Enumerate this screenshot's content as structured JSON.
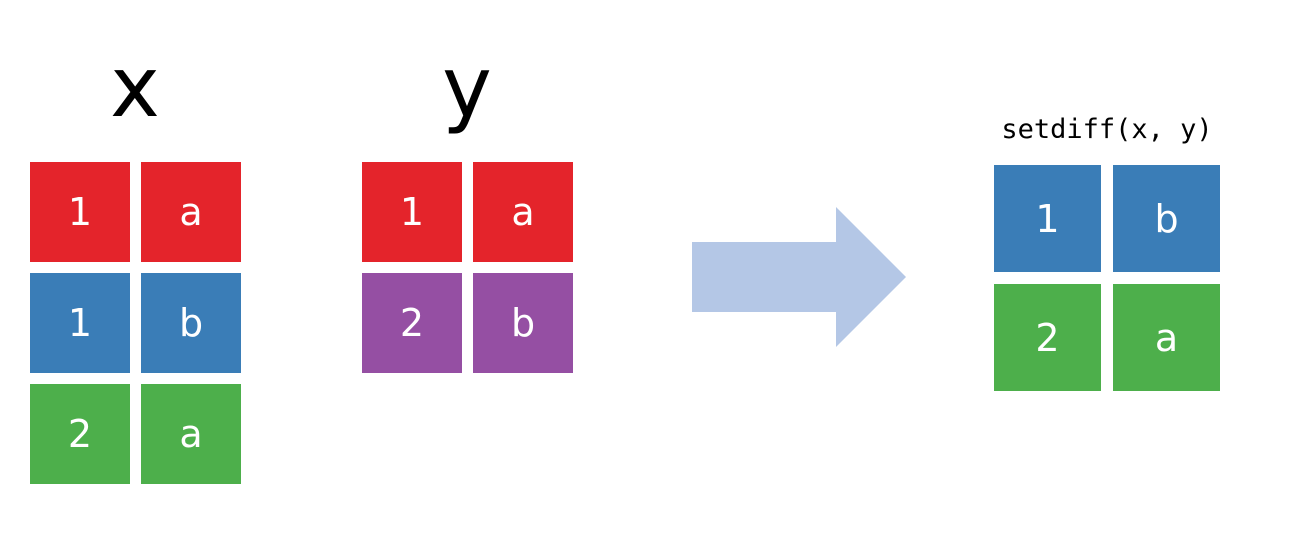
{
  "colors": {
    "red": "#e4242b",
    "blue": "#3a7db7",
    "green": "#4daf4b",
    "purple": "#954fa3",
    "arrow": "#b4c7e6"
  },
  "x": {
    "title": "x",
    "rows": [
      {
        "cells": [
          "1",
          "a"
        ],
        "color": "red"
      },
      {
        "cells": [
          "1",
          "b"
        ],
        "color": "blue"
      },
      {
        "cells": [
          "2",
          "a"
        ],
        "color": "green"
      }
    ]
  },
  "y": {
    "title": "y",
    "rows": [
      {
        "cells": [
          "1",
          "a"
        ],
        "color": "red"
      },
      {
        "cells": [
          "2",
          "b"
        ],
        "color": "purple"
      }
    ]
  },
  "arrow_icon": "right-arrow-icon",
  "result": {
    "title": "setdiff(x, y)",
    "rows": [
      {
        "cells": [
          "1",
          "b"
        ],
        "color": "blue"
      },
      {
        "cells": [
          "2",
          "a"
        ],
        "color": "green"
      }
    ]
  }
}
